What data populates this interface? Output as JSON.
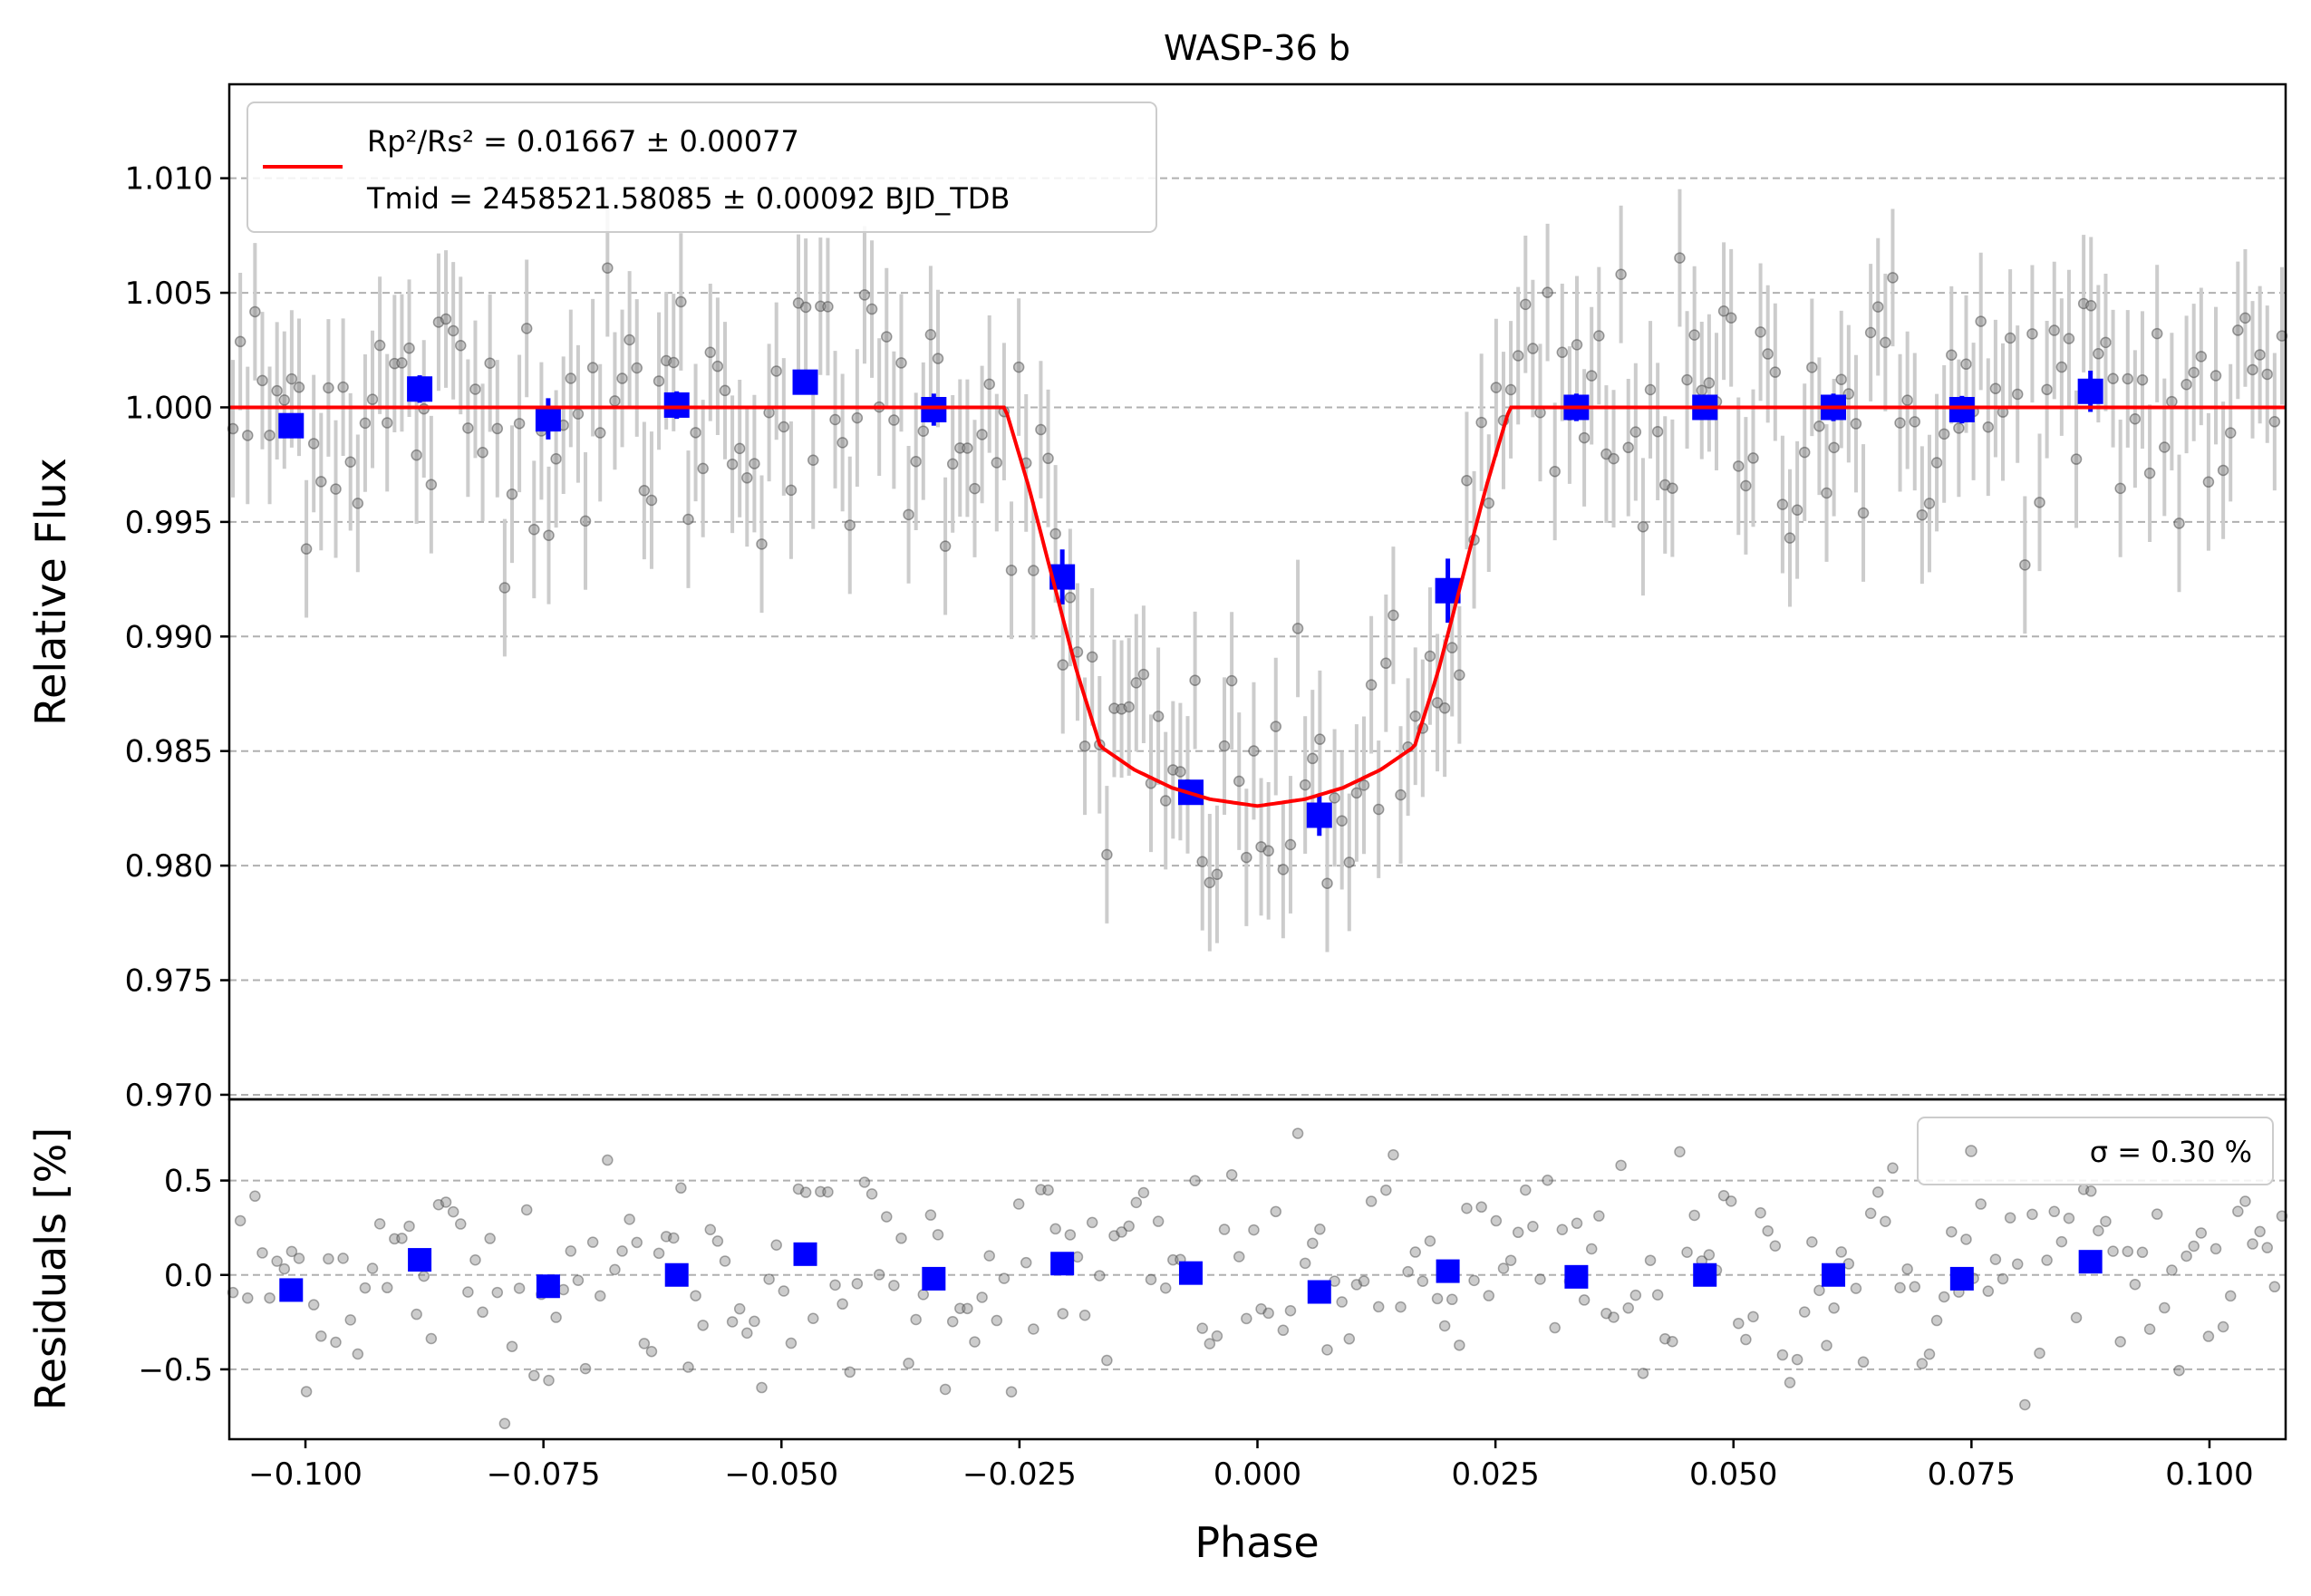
{
  "chart_data": [
    {
      "type": "scatter",
      "panel": "main",
      "title": "WASP-36 b",
      "xlabel": "",
      "ylabel": "Relative Flux",
      "xlim": [
        -0.108,
        0.108
      ],
      "ylim": [
        0.9698,
        1.0141
      ],
      "yticks": [
        "0.970",
        "0.975",
        "0.980",
        "0.985",
        "0.990",
        "0.995",
        "1.000",
        "1.005",
        "1.010"
      ],
      "ytick_values": [
        0.97,
        0.975,
        0.98,
        0.985,
        0.99,
        0.995,
        1.0,
        1.005,
        1.01
      ],
      "grid": "horizontal dashed",
      "legend": {
        "placement": "top-left",
        "entries": [
          {
            "label_line1": "Rp²/Rs² = 0.01667 ± 0.00077",
            "label_line2": "Tmid = 2458521.58085 ± 0.00092 BJD_TDB",
            "color": "#ff0000"
          }
        ]
      },
      "model": {
        "name": "transit model",
        "color": "#ff0000",
        "x": [
          -0.108,
          -0.0265,
          -0.024,
          -0.0215,
          -0.019,
          -0.0165,
          -0.013,
          -0.009,
          -0.005,
          0.0,
          0.005,
          0.009,
          0.013,
          0.0165,
          0.019,
          0.0215,
          0.024,
          0.0265,
          0.108
        ],
        "y": [
          1.0,
          1.0,
          0.9965,
          0.9925,
          0.9885,
          0.9852,
          0.9842,
          0.9834,
          0.9829,
          0.9826,
          0.9829,
          0.9834,
          0.9842,
          0.9852,
          0.9885,
          0.9925,
          0.9965,
          1.0,
          1.0
        ]
      },
      "binned": {
        "name": "binned data",
        "color": "#0000ff",
        "x": [
          -0.1015,
          -0.088,
          -0.0745,
          -0.061,
          -0.0475,
          -0.034,
          -0.0205,
          -0.007,
          0.0065,
          0.02,
          0.0335,
          0.047,
          0.0605,
          0.074,
          0.0875
        ],
        "y": [
          0.9992,
          1.0008,
          0.9995,
          1.0001,
          1.0011,
          0.9999,
          0.9926,
          0.9832,
          0.9822,
          0.992,
          1.0,
          1.0,
          1.0,
          0.9999,
          1.0007
        ],
        "err": [
          0.0005,
          0.0006,
          0.0009,
          0.0006,
          0.0005,
          0.0007,
          0.0012,
          0.0005,
          0.0009,
          0.0014,
          0.0006,
          0.0005,
          0.0006,
          0.0006,
          0.0009
        ]
      },
      "raw_points_color": "#808080",
      "raw_error_color": "#cccccc",
      "raw_points_count": 280,
      "raw_errorbar_halfwidth": 0.003
    },
    {
      "type": "scatter",
      "panel": "residuals",
      "xlabel": "Phase",
      "ylabel": "Residuals [%]",
      "xlim": [
        -0.108,
        0.108
      ],
      "ylim": [
        -0.87,
        0.93
      ],
      "xticks": [
        "−0.100",
        "−0.075",
        "−0.050",
        "−0.025",
        "0.000",
        "0.025",
        "0.050",
        "0.075",
        "0.100"
      ],
      "xtick_values": [
        -0.1,
        -0.075,
        -0.05,
        -0.025,
        0.0,
        0.025,
        0.05,
        0.075,
        0.1
      ],
      "yticks": [
        "−0.5",
        "0.0",
        "0.5"
      ],
      "ytick_values": [
        -0.5,
        0.0,
        0.5
      ],
      "grid": "horizontal dashed",
      "legend": {
        "placement": "top-right",
        "entries": [
          {
            "label": "σ = 0.30 %",
            "color": "#808080"
          }
        ]
      },
      "binned": {
        "color": "#0000ff",
        "x": [
          -0.1015,
          -0.088,
          -0.0745,
          -0.061,
          -0.0475,
          -0.034,
          -0.0205,
          -0.007,
          0.0065,
          0.02,
          0.0335,
          0.047,
          0.0605,
          0.074,
          0.0875
        ],
        "y": [
          -0.08,
          0.08,
          -0.06,
          0.0,
          0.11,
          -0.02,
          0.06,
          0.01,
          -0.09,
          0.02,
          -0.01,
          0.0,
          0.0,
          -0.02,
          0.07
        ]
      },
      "residual_sigma": 0.3
    }
  ]
}
